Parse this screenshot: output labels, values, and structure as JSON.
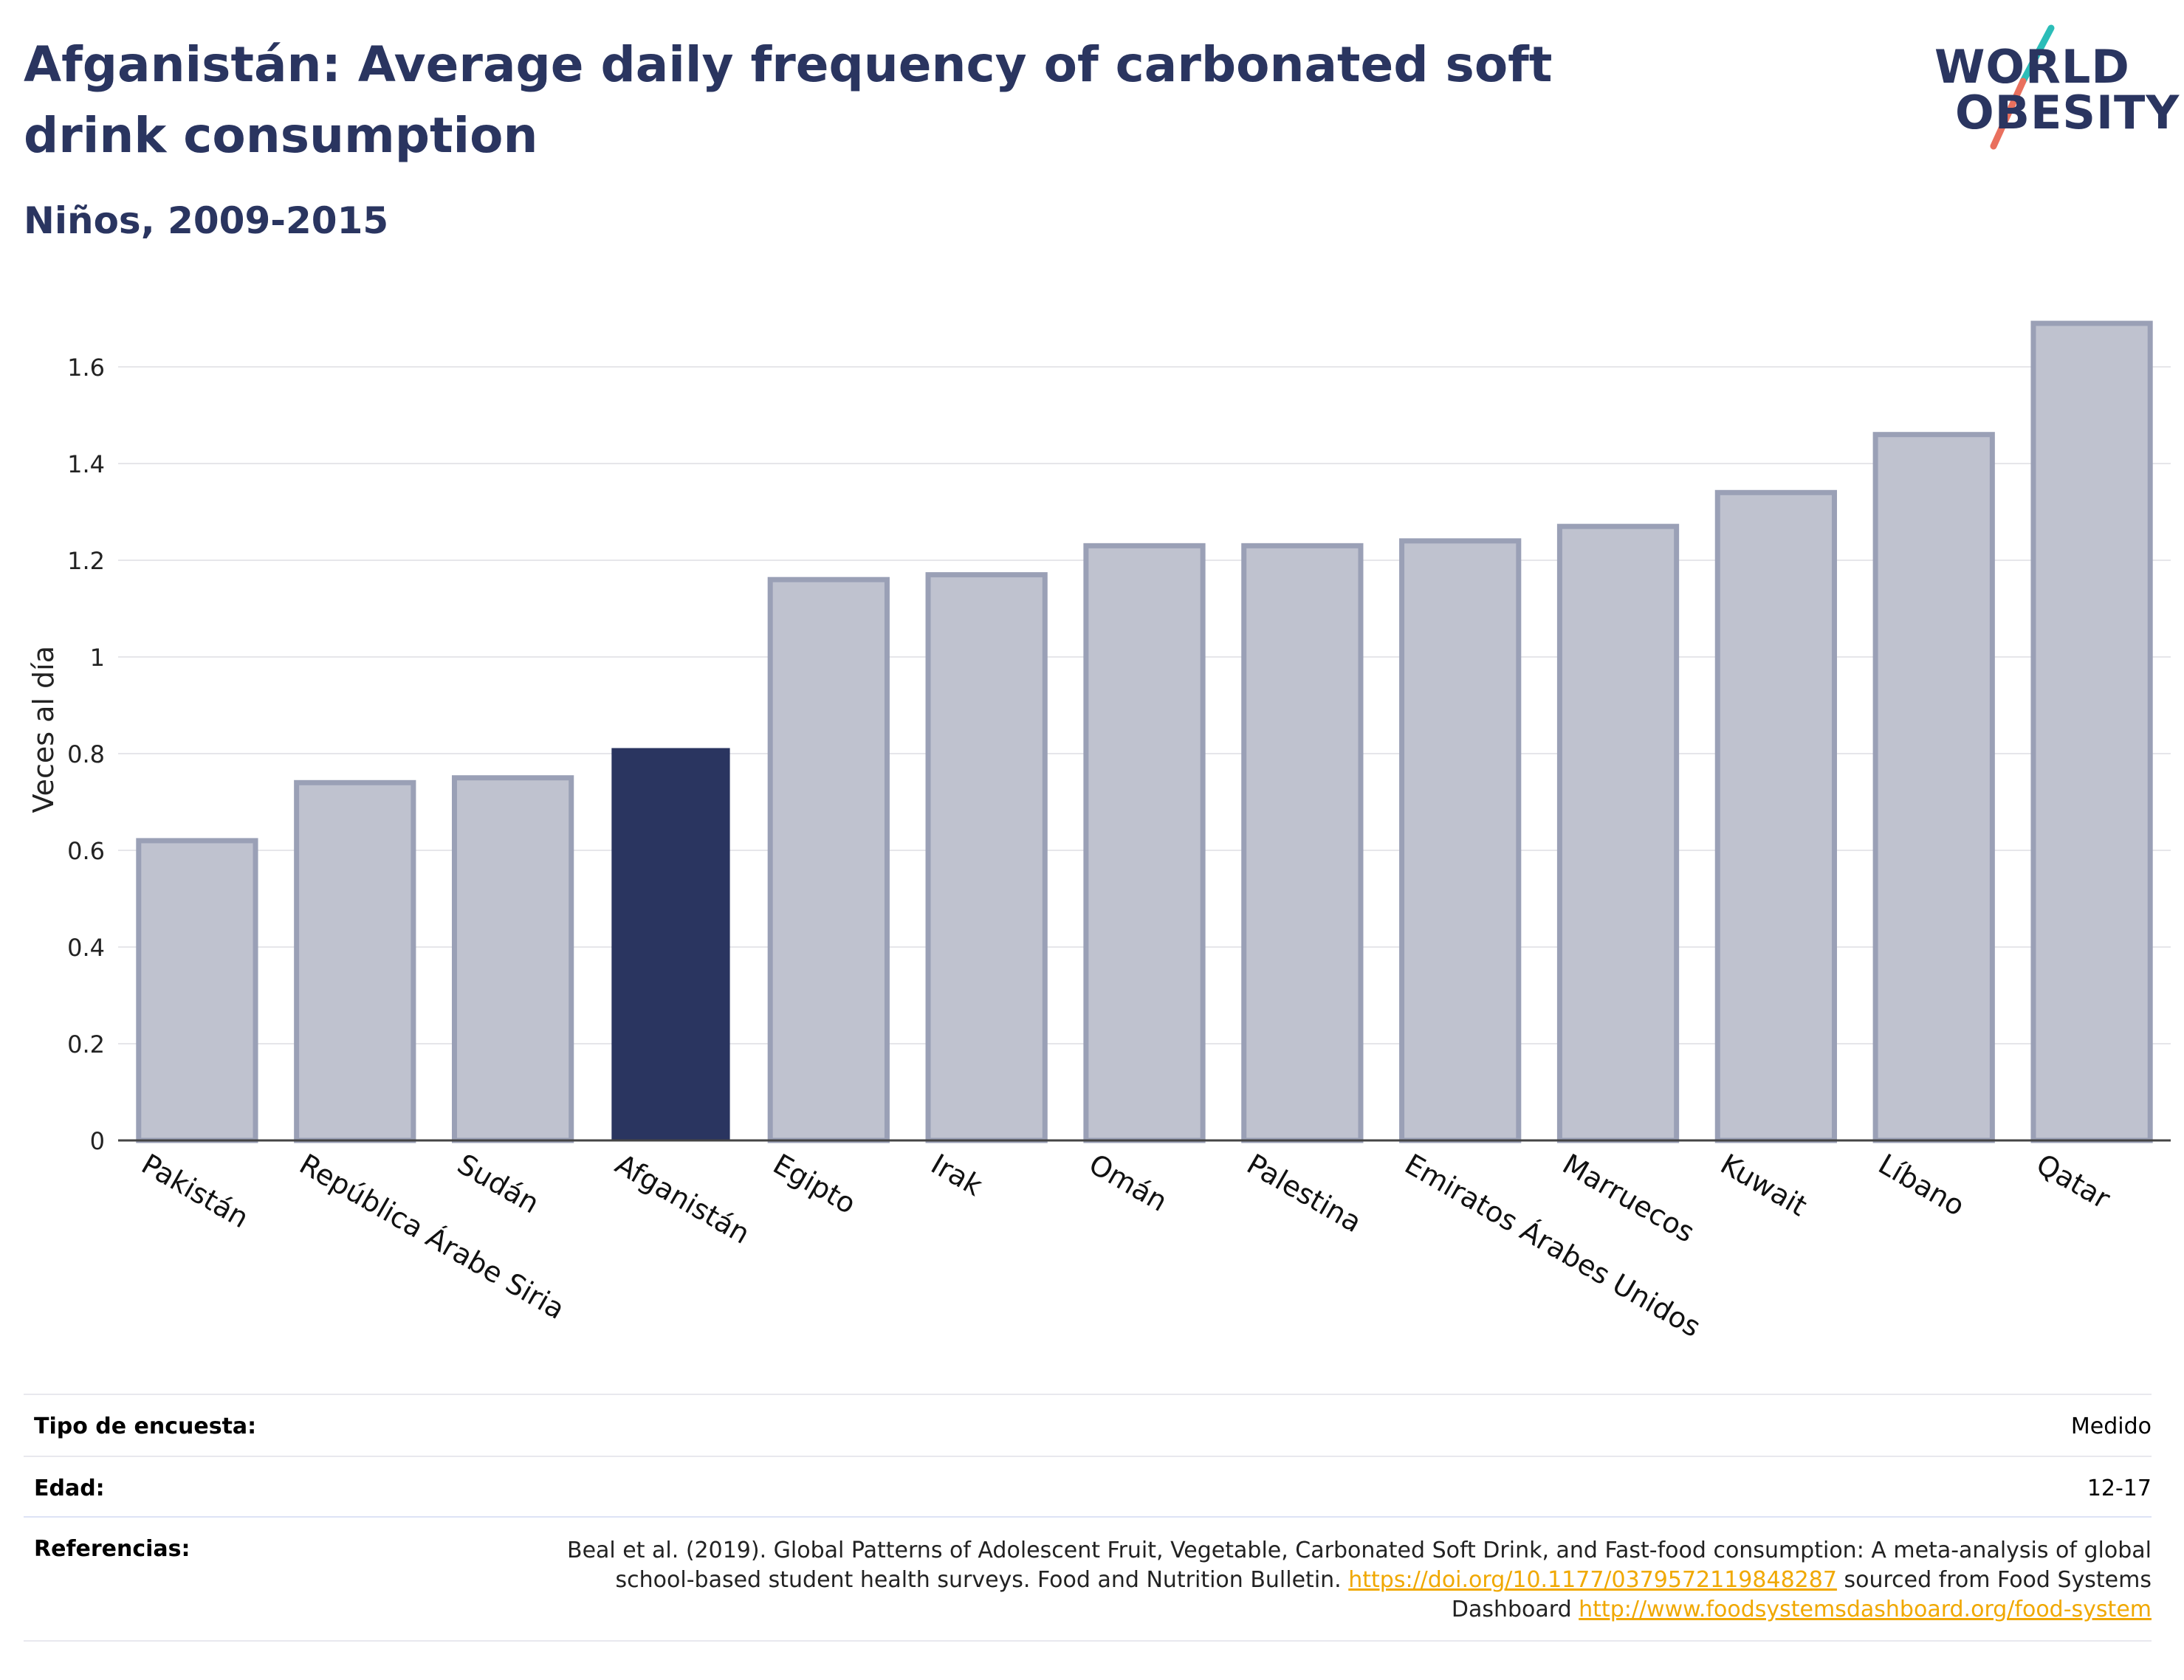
{
  "header": {
    "title": "Afganistán: Average daily frequency of carbonated soft drink consumption",
    "subtitle": "Niños, 2009-2015"
  },
  "logo": {
    "line1": "WORLD",
    "line2": "OBESITY"
  },
  "colors": {
    "highlight": "#2a3560",
    "bar_fill": "#bfc2cf",
    "bar_stroke": "#9aa0b6",
    "logo_teal": "#2bbdb8",
    "logo_coral": "#e9705e",
    "link": "#f0a800"
  },
  "chart_data": {
    "type": "bar",
    "title": "Afganistán: Average daily frequency of carbonated soft drink consumption",
    "subtitle": "Niños, 2009-2015",
    "ylabel": "Veces al día",
    "xlabel": "",
    "ylim": [
      0,
      1.7
    ],
    "yticks": [
      {
        "value": 0,
        "label": "0"
      },
      {
        "value": 0.2,
        "label": "0.2"
      },
      {
        "value": 0.4,
        "label": "0.4"
      },
      {
        "value": 0.6,
        "label": "0.6"
      },
      {
        "value": 0.8,
        "label": "0.8"
      },
      {
        "value": 1,
        "label": "1"
      },
      {
        "value": 1.2,
        "label": "1.2"
      },
      {
        "value": 1.4,
        "label": "1.4"
      },
      {
        "value": 1.6,
        "label": "1.6"
      }
    ],
    "grid": true,
    "highlight": "Afganistán",
    "categories": [
      "Pakistán",
      "República Árabe Siria",
      "Sudán",
      "Afganistán",
      "Egipto",
      "Irak",
      "Omán",
      "Palestina",
      "Emiratos Árabes Unidos",
      "Marruecos",
      "Kuwait",
      "Líbano",
      "Qatar"
    ],
    "values": [
      0.62,
      0.74,
      0.75,
      0.81,
      1.16,
      1.17,
      1.23,
      1.23,
      1.24,
      1.27,
      1.34,
      1.46,
      1.69
    ]
  },
  "meta": {
    "survey_label": "Tipo de encuesta:",
    "survey_value": "Medido",
    "age_label": "Edad:",
    "age_value": "12-17",
    "ref_label": "Referencias:",
    "ref_text_1": "Beal et al. (2019). Global Patterns of Adolescent Fruit, Vegetable, Carbonated Soft Drink, and Fast-food consumption: A meta-analysis of global school-based student health surveys. Food and Nutrition Bulletin. ",
    "ref_link_1": "https://doi.org/10.1177/0379572119848287",
    "ref_text_2": " sourced from Food Systems Dashboard ",
    "ref_link_2": "http://www.foodsystemsdashboard.org/food-system"
  }
}
